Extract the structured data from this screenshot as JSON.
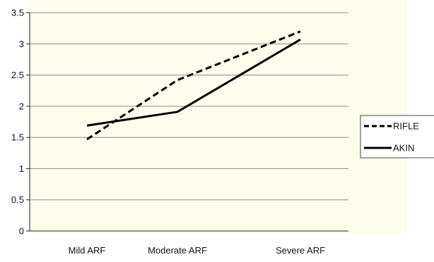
{
  "chart_data": {
    "type": "line",
    "title": "",
    "xlabel": "",
    "ylabel": "",
    "categories": [
      "Mild ARF",
      "Moderate ARF",
      "Severe ARF"
    ],
    "ylim": [
      0,
      3.5
    ],
    "yticks": [
      "0",
      "0.5",
      "1",
      "1.5",
      "2",
      "2.5",
      "3",
      "3.5"
    ],
    "grid": true,
    "legend_position": "right",
    "series": [
      {
        "name": "RIFLE",
        "values": [
          1.47,
          2.42,
          3.2
        ],
        "line_style": "dashed",
        "color": "#000000"
      },
      {
        "name": "AKIN",
        "values": [
          1.69,
          1.91,
          3.07
        ],
        "line_style": "solid",
        "color": "#000000"
      }
    ],
    "plot_background": "#fdfdec",
    "grid_color": "#8a8a8a"
  }
}
